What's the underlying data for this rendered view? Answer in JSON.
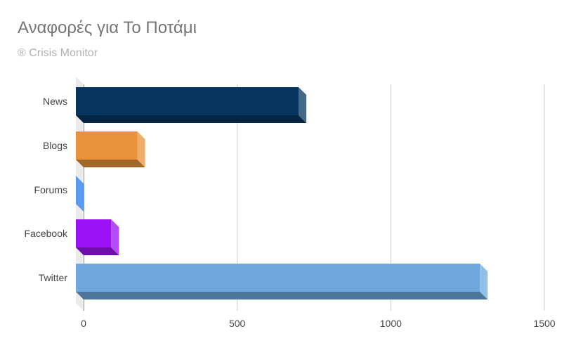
{
  "chart_data": {
    "type": "bar",
    "orientation": "horizontal",
    "style": "3d",
    "title": "Αναφορές για Το Ποτάμι",
    "subtitle": "® Crisis Monitor",
    "categories": [
      "News",
      "Blogs",
      "Forums",
      "Facebook",
      "Twitter"
    ],
    "values": [
      725,
      200,
      0,
      115,
      1315
    ],
    "colors": [
      "#08355f",
      "#e8923a",
      "#5a9bf0",
      "#9a12f5",
      "#6fa8dc"
    ],
    "xlim": [
      0,
      1500
    ],
    "xticks": [
      0,
      500,
      1000,
      1500
    ],
    "grid": true,
    "legend": "none"
  }
}
